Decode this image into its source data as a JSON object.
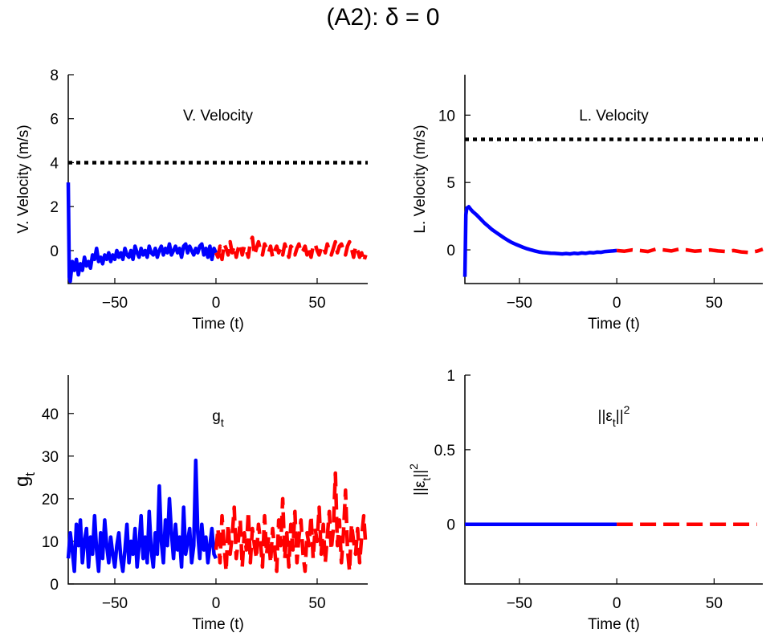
{
  "figure": {
    "title": "(A2): δ = 0"
  },
  "colors": {
    "past": "#0000ff",
    "future": "#ff0000",
    "reference": "#000000"
  },
  "chart_data": [
    {
      "type": "line",
      "title": "V. Velocity",
      "xlabel": "Time (t)",
      "ylabel": "V. Velocity (m/s)",
      "xlim": [
        -73,
        75
      ],
      "ylim": [
        -1.5,
        8
      ],
      "xticks": [
        -50,
        0,
        50
      ],
      "xtick_labels": [
        "−50",
        "0",
        "50"
      ],
      "yticks": [
        0,
        2,
        4,
        6,
        8
      ],
      "ytick_labels": [
        "0",
        "2",
        "4",
        "6",
        "8"
      ],
      "reference_line": 4,
      "series": [
        {
          "name": "past",
          "style": "solid",
          "x": [
            -73,
            -72.5,
            -72,
            -71,
            -70,
            -69,
            -68,
            -67,
            -66,
            -65,
            -64,
            -63,
            -62,
            -61,
            -60,
            -59,
            -58,
            -57,
            -56,
            -55,
            -54,
            -53,
            -52,
            -51,
            -50,
            -49,
            -48,
            -47,
            -46,
            -45,
            -44,
            -43,
            -42,
            -41,
            -40,
            -39,
            -38,
            -37,
            -36,
            -35,
            -34,
            -33,
            -32,
            -31,
            -30,
            -29,
            -28,
            -27,
            -26,
            -25,
            -24,
            -23,
            -22,
            -21,
            -20,
            -19,
            -18,
            -17,
            -16,
            -15,
            -14,
            -13,
            -12,
            -11,
            -10,
            -9,
            -8,
            -7,
            -6,
            -5,
            -4,
            -3,
            -2,
            -1,
            0
          ],
          "y": [
            3.1,
            -1.2,
            -1.4,
            -0.5,
            -0.9,
            -0.4,
            -1.1,
            -0.6,
            -0.9,
            -0.3,
            -0.7,
            -0.5,
            -0.8,
            -0.2,
            -0.4,
            0.1,
            -0.5,
            -0.3,
            -0.6,
            -0.2,
            -0.4,
            -0.1,
            -0.5,
            -0.2,
            -0.4,
            0.0,
            -0.3,
            -0.1,
            -0.4,
            0.1,
            -0.2,
            -0.3,
            0.0,
            -0.4,
            0.2,
            -0.1,
            -0.3,
            0.1,
            -0.2,
            0.0,
            -0.3,
            0.2,
            -0.1,
            -0.2,
            0.1,
            -0.3,
            0.0,
            0.2,
            -0.2,
            0.1,
            -0.1,
            0.3,
            -0.2,
            0.0,
            0.2,
            -0.1,
            0.1,
            -0.3,
            0.2,
            0.3,
            -0.1,
            0.2,
            0.0,
            -0.2,
            0.1,
            -0.1,
            0.2,
            0.3,
            -0.2,
            0.1,
            -0.3,
            0.2,
            -0.4,
            0.1,
            -0.1
          ]
        },
        {
          "name": "future",
          "style": "dashed",
          "x": [
            0,
            1,
            2,
            3,
            4,
            5,
            6,
            7,
            8,
            9,
            10,
            11,
            12,
            13,
            14,
            15,
            16,
            17,
            18,
            19,
            20,
            21,
            22,
            23,
            24,
            25,
            26,
            27,
            28,
            29,
            30,
            31,
            32,
            33,
            34,
            35,
            36,
            37,
            38,
            39,
            40,
            41,
            42,
            43,
            44,
            45,
            46,
            47,
            48,
            49,
            50,
            51,
            52,
            53,
            54,
            55,
            56,
            57,
            58,
            59,
            60,
            61,
            62,
            63,
            64,
            65,
            66,
            67,
            68,
            69,
            70,
            71,
            72,
            73,
            74
          ],
          "y": [
            -0.1,
            -0.3,
            0.2,
            -0.4,
            0.3,
            0.1,
            -0.2,
            0.4,
            -0.1,
            0.2,
            -0.3,
            0.1,
            0.3,
            -0.2,
            0.2,
            0.0,
            -0.3,
            0.4,
            0.6,
            -0.2,
            0.1,
            0.4,
            0.0,
            -0.2,
            0.3,
            0.1,
            -0.1,
            0.2,
            -0.3,
            0.0,
            0.2,
            -0.1,
            0.1,
            -0.2,
            0.3,
            0.0,
            -0.3,
            0.2,
            0.1,
            -0.2,
            0.1,
            0.3,
            -0.1,
            0.0,
            0.2,
            -0.2,
            0.1,
            -0.3,
            0.2,
            0.3,
            0.0,
            -0.2,
            0.1,
            0.2,
            -0.1,
            0.3,
            0.0,
            -0.2,
            0.1,
            0.4,
            -0.1,
            0.2,
            0.3,
            0.0,
            -0.2,
            0.2,
            0.4,
            0.1,
            -0.3,
            0.2,
            0.0,
            -0.3,
            -0.1,
            -0.5,
            -0.2
          ]
        }
      ]
    },
    {
      "type": "line",
      "title": "L. Velocity",
      "xlabel": "Time (t)",
      "ylabel": "L. Velocity (m/s)",
      "xlim": [
        -78,
        75
      ],
      "ylim": [
        -2.5,
        13
      ],
      "xticks": [
        -50,
        0,
        50
      ],
      "xtick_labels": [
        "−50",
        "0",
        "50"
      ],
      "yticks": [
        0,
        5,
        10
      ],
      "ytick_labels": [
        "0",
        "5",
        "10"
      ],
      "reference_line": 8.2,
      "series": [
        {
          "name": "past",
          "style": "solid",
          "x": [
            -78,
            -77.5,
            -77,
            -76,
            -75,
            -74,
            -72,
            -70,
            -68,
            -66,
            -64,
            -62,
            -60,
            -58,
            -56,
            -54,
            -52,
            -50,
            -48,
            -46,
            -44,
            -42,
            -40,
            -38,
            -36,
            -34,
            -32,
            -30,
            -28,
            -26,
            -24,
            -22,
            -20,
            -18,
            -16,
            -14,
            -12,
            -10,
            -8,
            -6,
            -4,
            -2,
            0
          ],
          "y": [
            -2.0,
            2.6,
            3.1,
            3.2,
            3.0,
            2.85,
            2.6,
            2.3,
            2.0,
            1.75,
            1.5,
            1.3,
            1.1,
            0.9,
            0.72,
            0.55,
            0.42,
            0.3,
            0.18,
            0.08,
            0.0,
            -0.08,
            -0.15,
            -0.2,
            -0.22,
            -0.25,
            -0.26,
            -0.28,
            -0.3,
            -0.27,
            -0.3,
            -0.25,
            -0.28,
            -0.23,
            -0.26,
            -0.2,
            -0.22,
            -0.17,
            -0.18,
            -0.12,
            -0.1,
            -0.08,
            -0.05
          ]
        },
        {
          "name": "future",
          "style": "dashed",
          "x": [
            0,
            4,
            8,
            12,
            16,
            20,
            24,
            28,
            32,
            36,
            40,
            44,
            48,
            52,
            56,
            60,
            64,
            68,
            72,
            75
          ],
          "y": [
            -0.05,
            -0.1,
            0.0,
            -0.05,
            -0.12,
            0.05,
            0.0,
            -0.08,
            0.05,
            0.0,
            -0.1,
            -0.05,
            0.0,
            -0.08,
            -0.12,
            -0.05,
            -0.15,
            -0.2,
            -0.1,
            0.05
          ]
        }
      ]
    },
    {
      "type": "line",
      "title": "g_t",
      "title_base": "g",
      "title_sub": "t",
      "xlabel": "Time (t)",
      "ylabel": "g_t",
      "ylabel_base": "g",
      "ylabel_sub": "t",
      "xlim": [
        -73,
        75
      ],
      "ylim": [
        0,
        49
      ],
      "xticks": [
        -50,
        0,
        50
      ],
      "xtick_labels": [
        "−50",
        "0",
        "50"
      ],
      "yticks": [
        0,
        10,
        20,
        30,
        40
      ],
      "ytick_labels": [
        "0",
        "10",
        "20",
        "30",
        "40"
      ],
      "series": [
        {
          "name": "past",
          "style": "solid",
          "x": [
            -73,
            -72,
            -71,
            -70,
            -69,
            -68,
            -67,
            -66,
            -65,
            -64,
            -63,
            -62,
            -61,
            -60,
            -59,
            -58,
            -57,
            -56,
            -55,
            -54,
            -53,
            -52,
            -51,
            -50,
            -49,
            -48,
            -47,
            -46,
            -45,
            -44,
            -43,
            -42,
            -41,
            -40,
            -39,
            -38,
            -37,
            -36,
            -35,
            -34,
            -33,
            -32,
            -31,
            -30,
            -29,
            -28,
            -27,
            -26,
            -25,
            -24,
            -23,
            -22,
            -21,
            -20,
            -19,
            -18,
            -17,
            -16,
            -15,
            -14,
            -13,
            -12,
            -11,
            -10,
            -9,
            -8,
            -7,
            -6,
            -5,
            -4,
            -3,
            -2,
            -1,
            0
          ],
          "y": [
            6,
            12,
            8,
            3,
            14,
            9,
            15,
            5,
            10,
            13,
            4,
            11,
            7,
            16,
            8,
            3,
            12,
            6,
            15,
            9,
            5,
            11,
            7,
            4,
            9,
            12,
            6,
            3,
            8,
            14,
            5,
            10,
            7,
            13,
            4,
            9,
            16,
            6,
            11,
            5,
            17,
            8,
            4,
            12,
            7,
            23,
            10,
            5,
            15,
            9,
            20,
            12,
            6,
            14,
            8,
            11,
            4,
            18,
            7,
            10,
            13,
            5,
            9,
            29,
            12,
            6,
            14,
            8,
            11,
            5,
            9,
            13,
            7,
            6
          ]
        },
        {
          "name": "future",
          "style": "dashed",
          "x": [
            0,
            1,
            2,
            3,
            4,
            5,
            6,
            7,
            8,
            9,
            10,
            11,
            12,
            13,
            14,
            15,
            16,
            17,
            18,
            19,
            20,
            21,
            22,
            23,
            24,
            25,
            26,
            27,
            28,
            29,
            30,
            31,
            32,
            33,
            34,
            35,
            36,
            37,
            38,
            39,
            40,
            41,
            42,
            43,
            44,
            45,
            46,
            47,
            48,
            49,
            50,
            51,
            52,
            53,
            54,
            55,
            56,
            57,
            58,
            59,
            60,
            61,
            62,
            63,
            64,
            65,
            66,
            67,
            68,
            69,
            70,
            71,
            72,
            73,
            74
          ],
          "y": [
            8,
            13,
            5,
            16,
            9,
            3,
            14,
            7,
            11,
            18,
            6,
            10,
            15,
            4,
            12,
            8,
            17,
            5,
            13,
            9,
            6,
            14,
            10,
            4,
            16,
            7,
            11,
            5,
            13,
            8,
            3,
            15,
            9,
            20,
            6,
            12,
            4,
            14,
            8,
            17,
            5,
            11,
            15,
            7,
            3,
            12,
            9,
            16,
            6,
            13,
            10,
            18,
            7,
            14,
            5,
            11,
            17,
            8,
            13,
            26,
            9,
            15,
            5,
            12,
            22,
            8,
            3,
            14,
            10,
            7,
            13,
            5,
            11,
            16,
            9
          ]
        }
      ]
    },
    {
      "type": "line",
      "title": "||ε_t||^2",
      "title_parts": [
        "||ε",
        "t",
        "||",
        "2"
      ],
      "xlabel": "Time (t)",
      "ylabel": "||ε_t||^2",
      "ylabel_parts": [
        "||ε",
        "t",
        "||",
        "2"
      ],
      "xlim": [
        -78,
        75
      ],
      "ylim": [
        -0.4,
        1
      ],
      "xticks": [
        -50,
        0,
        50
      ],
      "xtick_labels": [
        "−50",
        "0",
        "50"
      ],
      "yticks": [
        0,
        0.5,
        1
      ],
      "ytick_labels": [
        "0",
        "0.5",
        "1"
      ],
      "series": [
        {
          "name": "past",
          "style": "solid",
          "x": [
            -78,
            0
          ],
          "y": [
            0,
            0
          ]
        },
        {
          "name": "future",
          "style": "dashed",
          "x": [
            0,
            72
          ],
          "y": [
            0,
            0
          ]
        }
      ]
    }
  ]
}
